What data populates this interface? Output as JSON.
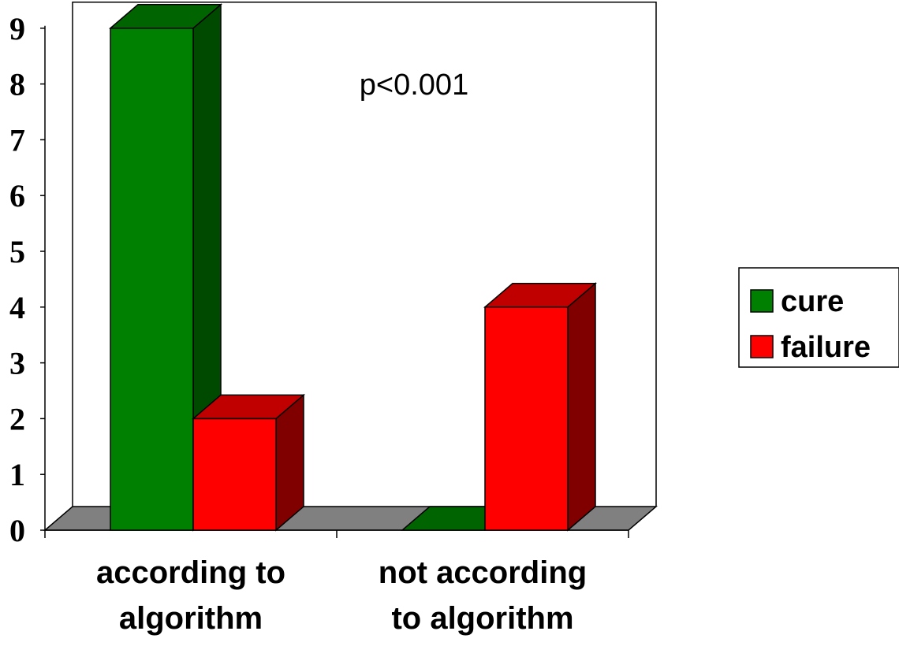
{
  "chart_data": {
    "type": "bar",
    "categories": [
      "according to algorithm",
      "not according to algorithm"
    ],
    "category_lines": [
      [
        "according to",
        "algorithm"
      ],
      [
        "not according",
        "to algorithm"
      ]
    ],
    "series": [
      {
        "name": "cure",
        "values": [
          9,
          0
        ],
        "color": "#008000",
        "side_color": "#004a00",
        "top_color": "#006400"
      },
      {
        "name": "failure",
        "values": [
          2,
          4
        ],
        "color": "#ff0000",
        "side_color": "#800000",
        "top_color": "#c00000"
      }
    ],
    "y_ticks": [
      "0",
      "1",
      "2",
      "3",
      "4",
      "5",
      "6",
      "7",
      "8",
      "9"
    ],
    "ylim": [
      0,
      9
    ],
    "annotation": "p<0.001",
    "legend_position": "right",
    "three_d": true,
    "floor_color": "#808080"
  }
}
